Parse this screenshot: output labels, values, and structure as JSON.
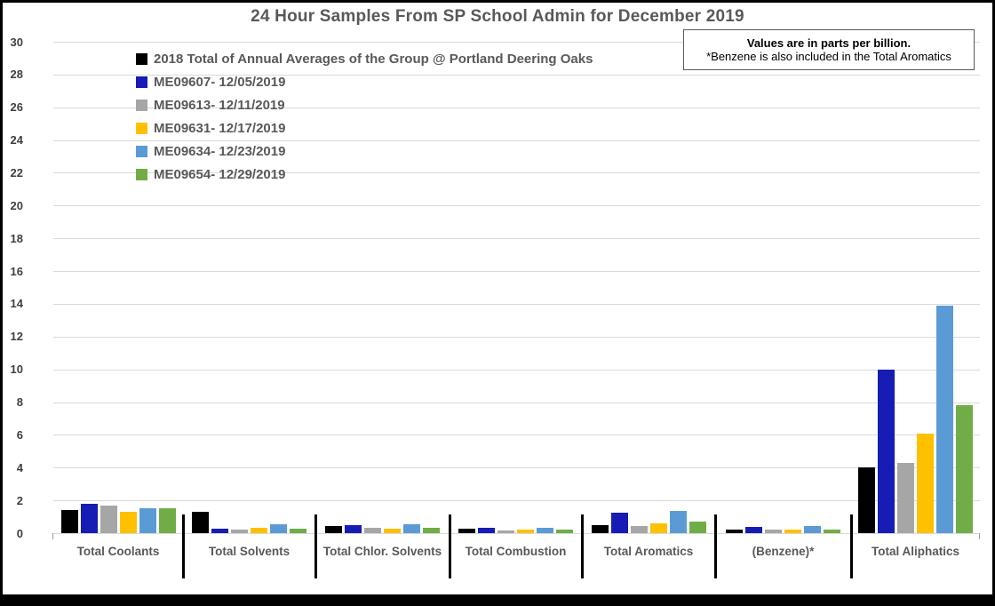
{
  "title": "24 Hour Samples From SP School Admin for December 2019",
  "note": {
    "line1": "Values are in parts per billion.",
    "line2": "*Benzene is also included in the Total Aromatics"
  },
  "chart_data": {
    "type": "bar",
    "title": "24 Hour Samples From SP School Admin for December 2019",
    "unit": "parts per billion",
    "categories": [
      "Total Coolants",
      "Total Solvents",
      "Total Chlor. Solvents",
      "Total Combustion",
      "Total Aromatics",
      "(Benzene)*",
      "Total Aliphatics"
    ],
    "series": [
      {
        "name": "2018 Total of Annual Averages of the Group @ Portland Deering Oaks",
        "color": "#000000",
        "values": [
          1.4,
          1.3,
          0.45,
          0.25,
          0.5,
          0.2,
          4.0
        ]
      },
      {
        "name": "ME09607- 12/05/2019",
        "color": "#161CB4",
        "values": [
          1.8,
          0.25,
          0.5,
          0.3,
          1.25,
          0.4,
          10.0
        ]
      },
      {
        "name": "ME09613- 12/11/2019",
        "color": "#A6A6A6",
        "values": [
          1.7,
          0.2,
          0.3,
          0.15,
          0.45,
          0.2,
          4.3
        ]
      },
      {
        "name": "ME09631- 12/17/2019",
        "color": "#FFC000",
        "values": [
          1.3,
          0.3,
          0.25,
          0.2,
          0.6,
          0.2,
          6.1
        ]
      },
      {
        "name": "ME09634- 12/23/2019",
        "color": "#5B9BD5",
        "values": [
          1.5,
          0.55,
          0.55,
          0.35,
          1.35,
          0.45,
          13.9
        ]
      },
      {
        "name": "ME09654- 12/29/2019",
        "color": "#70AD47",
        "values": [
          1.5,
          0.25,
          0.3,
          0.2,
          0.7,
          0.2,
          7.8
        ]
      }
    ],
    "ylim": [
      0,
      30
    ],
    "ytick_step": 2,
    "grid": true,
    "legend_position": "top-left",
    "gridline_color": "#D9D9D9"
  }
}
